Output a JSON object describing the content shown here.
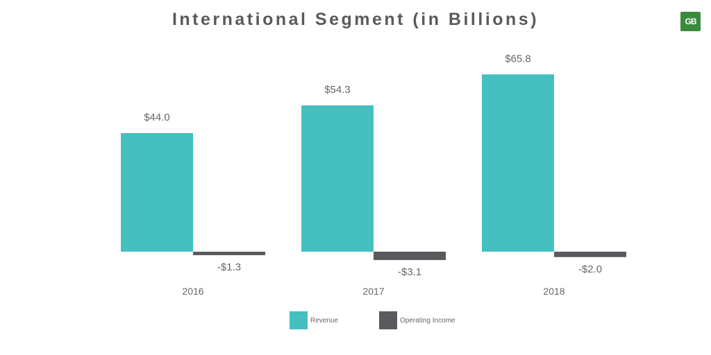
{
  "chart_data": {
    "type": "bar",
    "title": "International Segment (in Billions)",
    "categories": [
      "2016",
      "2017",
      "2018"
    ],
    "series": [
      {
        "name": "Revenue",
        "values": [
          44.0,
          54.3,
          65.8
        ],
        "labels": [
          "$44.0",
          "$54.3",
          "$65.8"
        ],
        "color": "#45bfbf"
      },
      {
        "name": "Operating Income",
        "values": [
          -1.3,
          -3.1,
          -2.0
        ],
        "labels": [
          "-$1.3",
          "-$3.1",
          "-$2.0"
        ],
        "color": "#5a5a5e"
      }
    ],
    "ylim": [
      -5,
      70
    ],
    "grid": false,
    "legend": "bottom"
  },
  "logo": {
    "text": "GB",
    "color": "#3a8a3c"
  }
}
